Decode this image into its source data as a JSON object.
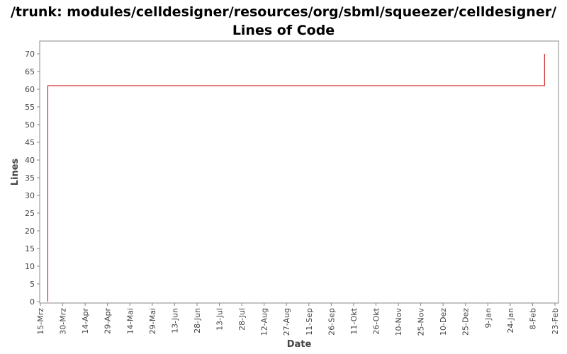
{
  "chart_data": {
    "type": "line",
    "title_line1": "/trunk: modules/celldesigner/resources/org/sbml/squeezer/celldesigner/",
    "title_line2": "Lines of Code",
    "xlabel": "Date",
    "ylabel": "Lines",
    "ylim": [
      0,
      72
    ],
    "yticks": [
      0,
      5,
      10,
      15,
      20,
      25,
      30,
      35,
      40,
      45,
      50,
      55,
      60,
      65,
      70
    ],
    "xticks": [
      "15-Mrz",
      "30-Mrz",
      "14-Apr",
      "29-Apr",
      "14-Mai",
      "29-Mai",
      "13-Jun",
      "28-Jun",
      "13-Jul",
      "28-Jul",
      "12-Aug",
      "27-Aug",
      "11-Sep",
      "26-Sep",
      "11-Okt",
      "26-Okt",
      "10-Nov",
      "25-Nov",
      "10-Dez",
      "25-Dez",
      "9-Jan",
      "24-Jan",
      "8-Feb",
      "23-Feb"
    ],
    "line_color": "#cc0000",
    "grid": false,
    "series": [
      {
        "points": [
          {
            "x": "2009-03-20",
            "y": 0
          },
          {
            "x": "2009-03-20",
            "y": 61
          },
          {
            "x": "2010-02-16",
            "y": 61
          },
          {
            "x": "2010-02-16",
            "y": 70
          }
        ]
      }
    ]
  }
}
